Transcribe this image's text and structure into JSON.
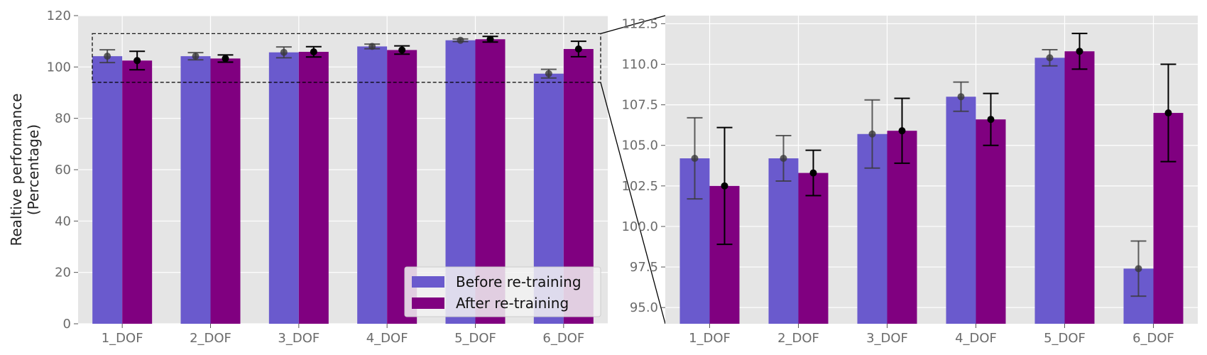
{
  "chart_data": [
    {
      "type": "bar",
      "panel": "full",
      "categories": [
        "1_DOF",
        "2_DOF",
        "3_DOF",
        "4_DOF",
        "5_DOF",
        "6_DOF"
      ],
      "series": [
        {
          "name": "Before re-training",
          "color": "#6a5acd",
          "values": [
            104.2,
            104.2,
            105.7,
            108.0,
            110.4,
            97.4
          ],
          "errors": [
            2.5,
            1.4,
            2.1,
            0.9,
            0.5,
            1.7
          ]
        },
        {
          "name": "After re-training",
          "color": "#800080",
          "values": [
            102.5,
            103.3,
            105.9,
            106.6,
            110.8,
            107.0
          ],
          "errors": [
            3.6,
            1.4,
            2.0,
            1.6,
            1.1,
            3.0
          ]
        }
      ],
      "ylabel": "Realtive performance",
      "ylabel2": "(Percentage)",
      "ylim": [
        0,
        120
      ],
      "yticks": [
        "0",
        "20",
        "40",
        "60",
        "80",
        "100",
        "120"
      ],
      "zoom_box": [
        94,
        113
      ],
      "legend": {
        "placement": "lower-right",
        "entries": [
          "Before re-training",
          "After re-training"
        ]
      }
    },
    {
      "type": "bar",
      "panel": "zoom",
      "categories": [
        "1_DOF",
        "2_DOF",
        "3_DOF",
        "4_DOF",
        "5_DOF",
        "6_DOF"
      ],
      "ylim": [
        94,
        113
      ],
      "yticks": [
        "95.0",
        "97.5",
        "100.0",
        "102.5",
        "105.0",
        "107.5",
        "110.0",
        "112.5"
      ]
    }
  ]
}
